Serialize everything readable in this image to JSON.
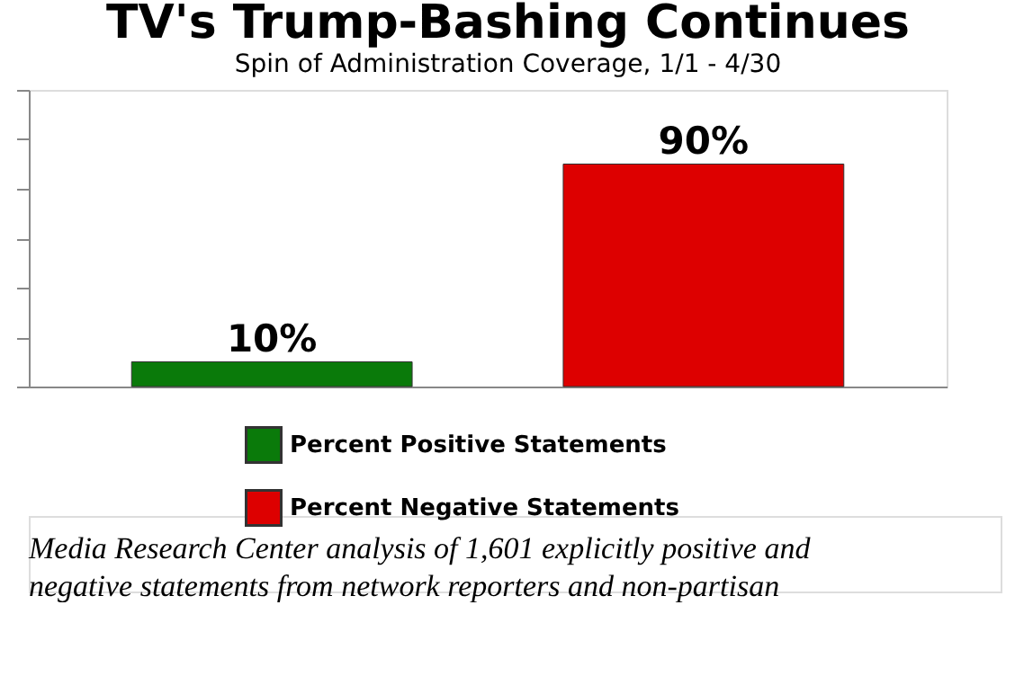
{
  "chart_data": {
    "type": "bar",
    "title": "TV's Trump-Bashing Continues",
    "subtitle": "Spin of Administration Coverage, 1/1 - 4/30",
    "categories": [
      null
    ],
    "series": [
      {
        "name": "Percent Positive Statements",
        "color": "#0a7a0a",
        "values": [
          10
        ],
        "value_labels": [
          "10%"
        ]
      },
      {
        "name": "Percent Negative Statements",
        "color": "#dd0000",
        "values": [
          90
        ],
        "value_labels": [
          "90%"
        ]
      }
    ],
    "ylim": [
      0,
      120
    ],
    "tick_labels": false,
    "grid": false,
    "legend": "bottom",
    "annotations": [
      "Media Research Center analysis of 1,601 explicitly positive and",
      "negative statements from network reporters and non-partisan"
    ]
  }
}
